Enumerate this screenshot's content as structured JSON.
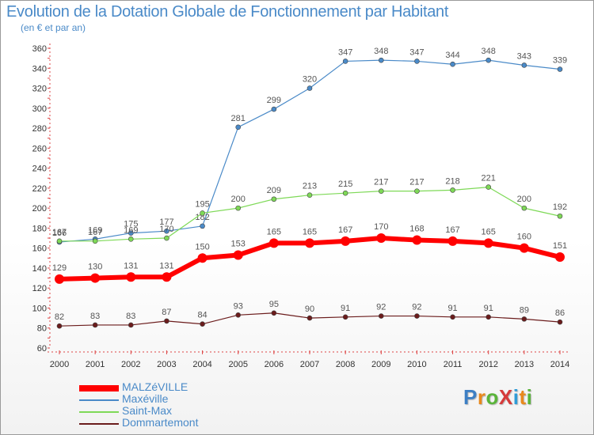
{
  "title": "Evolution de la Dotation Globale de Fonctionnement par Habitant",
  "subtitle": "(en € et par an)",
  "logo": {
    "text": "ProXiti",
    "letters": [
      {
        "ch": "P",
        "color": "#3d7fc4"
      },
      {
        "ch": "r",
        "color": "#e8891c"
      },
      {
        "ch": "o",
        "color": "#5ab43a"
      },
      {
        "ch": "X",
        "color": "#d63a3a"
      },
      {
        "ch": "i",
        "color": "#2e9bd6"
      },
      {
        "ch": "t",
        "color": "#e8891c"
      },
      {
        "ch": "i",
        "color": "#5ab43a"
      }
    ]
  },
  "chart_data": {
    "type": "line",
    "title": "Evolution de la Dotation Globale de Fonctionnement par Habitant",
    "ylabel": "(en € et par an)",
    "ylim": [
      60,
      360
    ],
    "yticks": [
      60,
      80,
      100,
      120,
      140,
      160,
      180,
      200,
      220,
      240,
      260,
      280,
      300,
      320,
      340,
      360
    ],
    "grid": false,
    "legend_position": "bottom-left",
    "x": [
      2000,
      2001,
      2002,
      2003,
      2004,
      2005,
      2006,
      2007,
      2008,
      2009,
      2010,
      2011,
      2012,
      2013,
      2014
    ],
    "series": [
      {
        "name": "MALZéVILLE",
        "color": "#ff0000",
        "emphasis": true,
        "values": [
          129,
          130,
          131,
          131,
          150,
          153,
          165,
          165,
          167,
          170,
          168,
          167,
          165,
          160,
          151
        ]
      },
      {
        "name": "Maxéville",
        "color": "#4a8ac8",
        "emphasis": false,
        "values": [
          166,
          169,
          175,
          177,
          182,
          281,
          299,
          320,
          347,
          348,
          347,
          344,
          348,
          343,
          339
        ]
      },
      {
        "name": "Saint-Max",
        "color": "#7ed957",
        "emphasis": false,
        "values": [
          167,
          167,
          169,
          170,
          195,
          200,
          209,
          213,
          215,
          217,
          217,
          218,
          221,
          200,
          192
        ]
      },
      {
        "name": "Dommartemont",
        "color": "#6b1c1c",
        "emphasis": false,
        "values": [
          82,
          83,
          83,
          87,
          84,
          93,
          95,
          90,
          91,
          92,
          92,
          91,
          91,
          89,
          86
        ]
      }
    ]
  }
}
